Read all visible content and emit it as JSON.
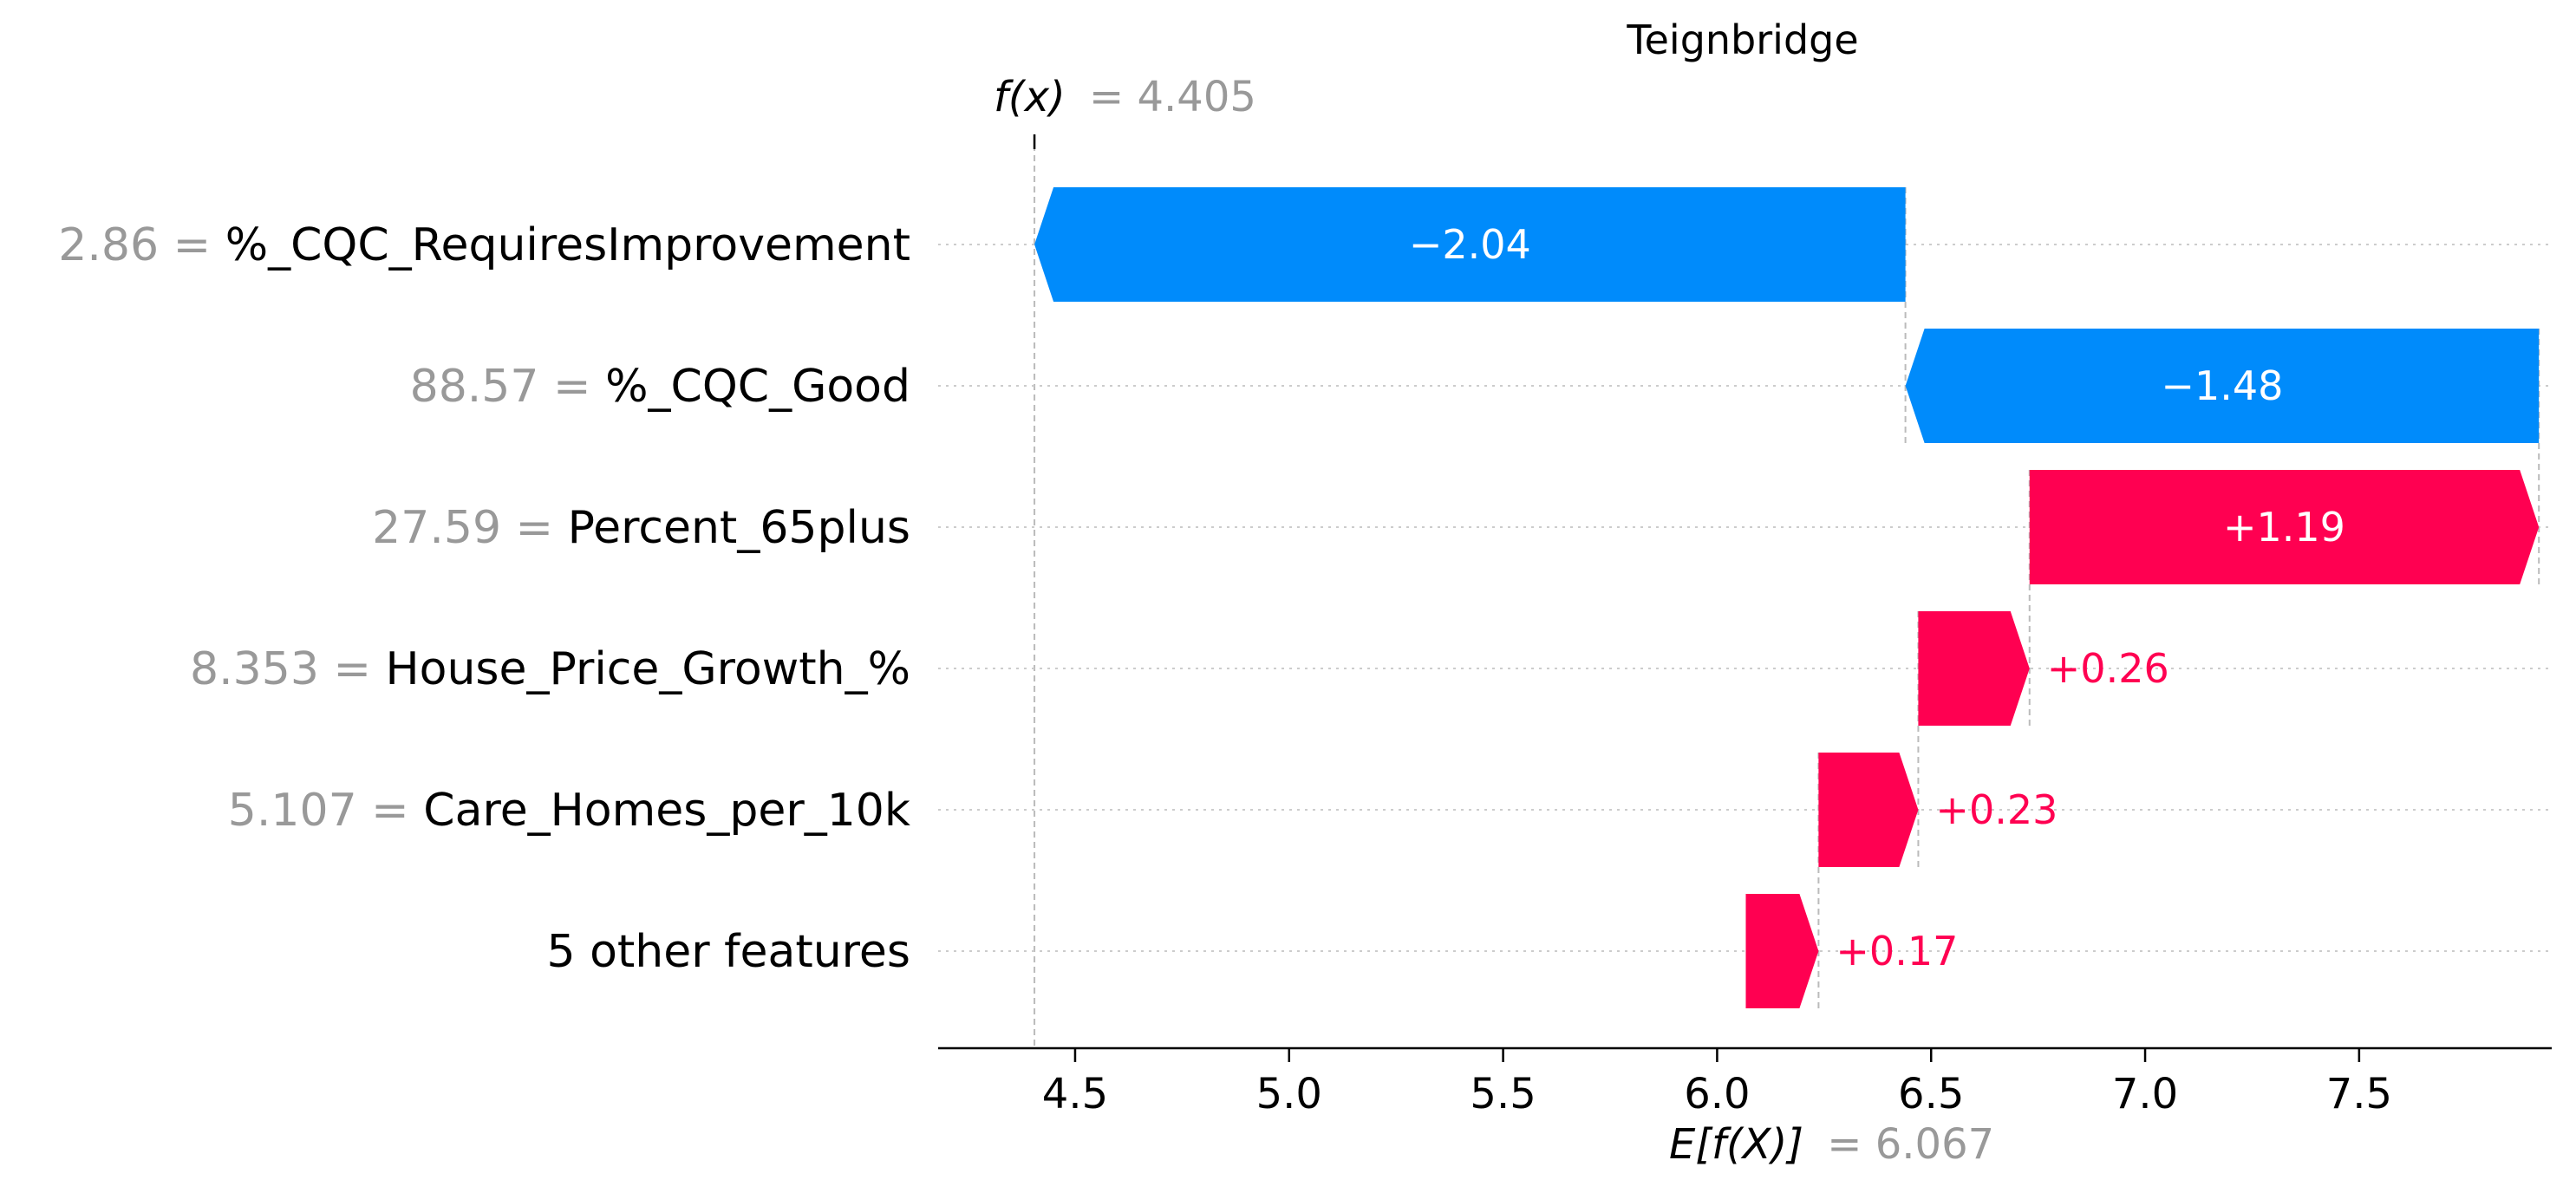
{
  "chart_data": {
    "type": "waterfall",
    "title": "Teignbridge",
    "fx": {
      "label": "f(x)",
      "eq": "= 4.405",
      "value": 4.405
    },
    "base": {
      "label": "E[f(X)]",
      "eq": "= 6.067",
      "value": 6.067
    },
    "features": [
      {
        "value_text": "2.86",
        "name": "%_CQC_RequiresImprovement",
        "start": 6.44,
        "end": 4.405,
        "label": "−2.04",
        "sign": "neg",
        "label_inside": true
      },
      {
        "value_text": "88.57",
        "name": "%_CQC_Good",
        "start": 7.92,
        "end": 6.44,
        "label": "−1.48",
        "sign": "neg",
        "label_inside": true
      },
      {
        "value_text": "27.59",
        "name": "Percent_65plus",
        "start": 6.73,
        "end": 7.92,
        "label": "+1.19",
        "sign": "pos",
        "label_inside": true
      },
      {
        "value_text": "8.353",
        "name": "House_Price_Growth_%",
        "start": 6.47,
        "end": 6.73,
        "label": "+0.26",
        "sign": "pos",
        "label_inside": false
      },
      {
        "value_text": "5.107",
        "name": "Care_Homes_per_10k",
        "start": 6.237,
        "end": 6.47,
        "label": "+0.23",
        "sign": "pos",
        "label_inside": false
      },
      {
        "value_text": "",
        "name": "5 other features",
        "start": 6.067,
        "end": 6.237,
        "label": "+0.17",
        "sign": "pos",
        "label_inside": false
      }
    ],
    "x_ticks": [
      "4.5",
      "5.0",
      "5.5",
      "6.0",
      "6.5",
      "7.0",
      "7.5"
    ],
    "xlim": [
      4.18,
      7.95
    ],
    "colors": {
      "positive": "#ff0051",
      "negative": "#008bfb",
      "muted": "#999999",
      "grid": "#cccccc"
    }
  }
}
